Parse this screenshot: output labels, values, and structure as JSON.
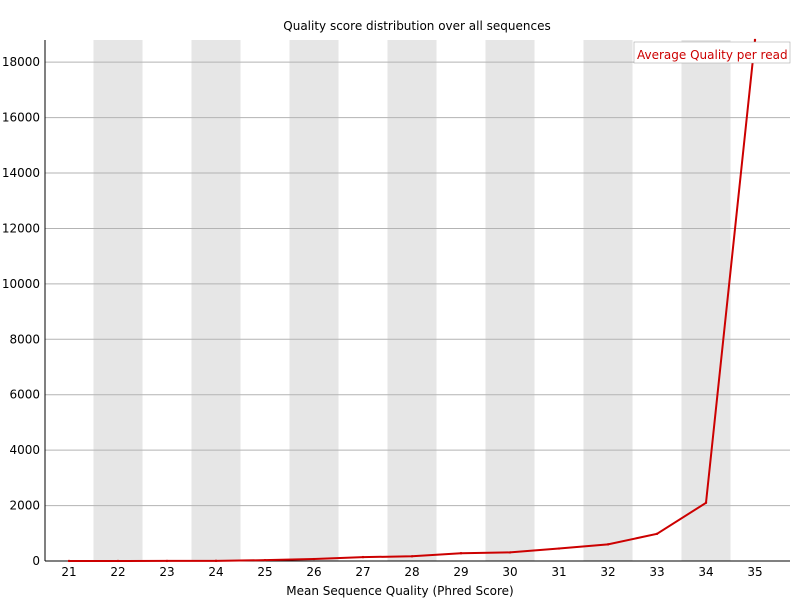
{
  "chart_data": {
    "type": "line",
    "title": "Quality score distribution over all sequences",
    "xlabel": "Mean Sequence Quality (Phred Score)",
    "ylabel": "",
    "x": [
      21,
      22,
      23,
      24,
      25,
      26,
      27,
      28,
      29,
      30,
      31,
      32,
      33,
      34,
      35
    ],
    "xlim": [
      21,
      35
    ],
    "ylim": [
      0,
      18800
    ],
    "yticks": [
      0,
      2000,
      4000,
      6000,
      8000,
      10000,
      12000,
      14000,
      16000,
      18000
    ],
    "series": [
      {
        "name": "Average Quality per read",
        "color": "#cc0000",
        "values": [
          1,
          2,
          3,
          5,
          30,
          70,
          140,
          170,
          280,
          310,
          450,
          600,
          980,
          2100,
          18800
        ]
      }
    ],
    "grid": "horizontal",
    "alternating_column_bands": true,
    "band_color": "#e6e6e6",
    "legend_position": "top-right"
  }
}
